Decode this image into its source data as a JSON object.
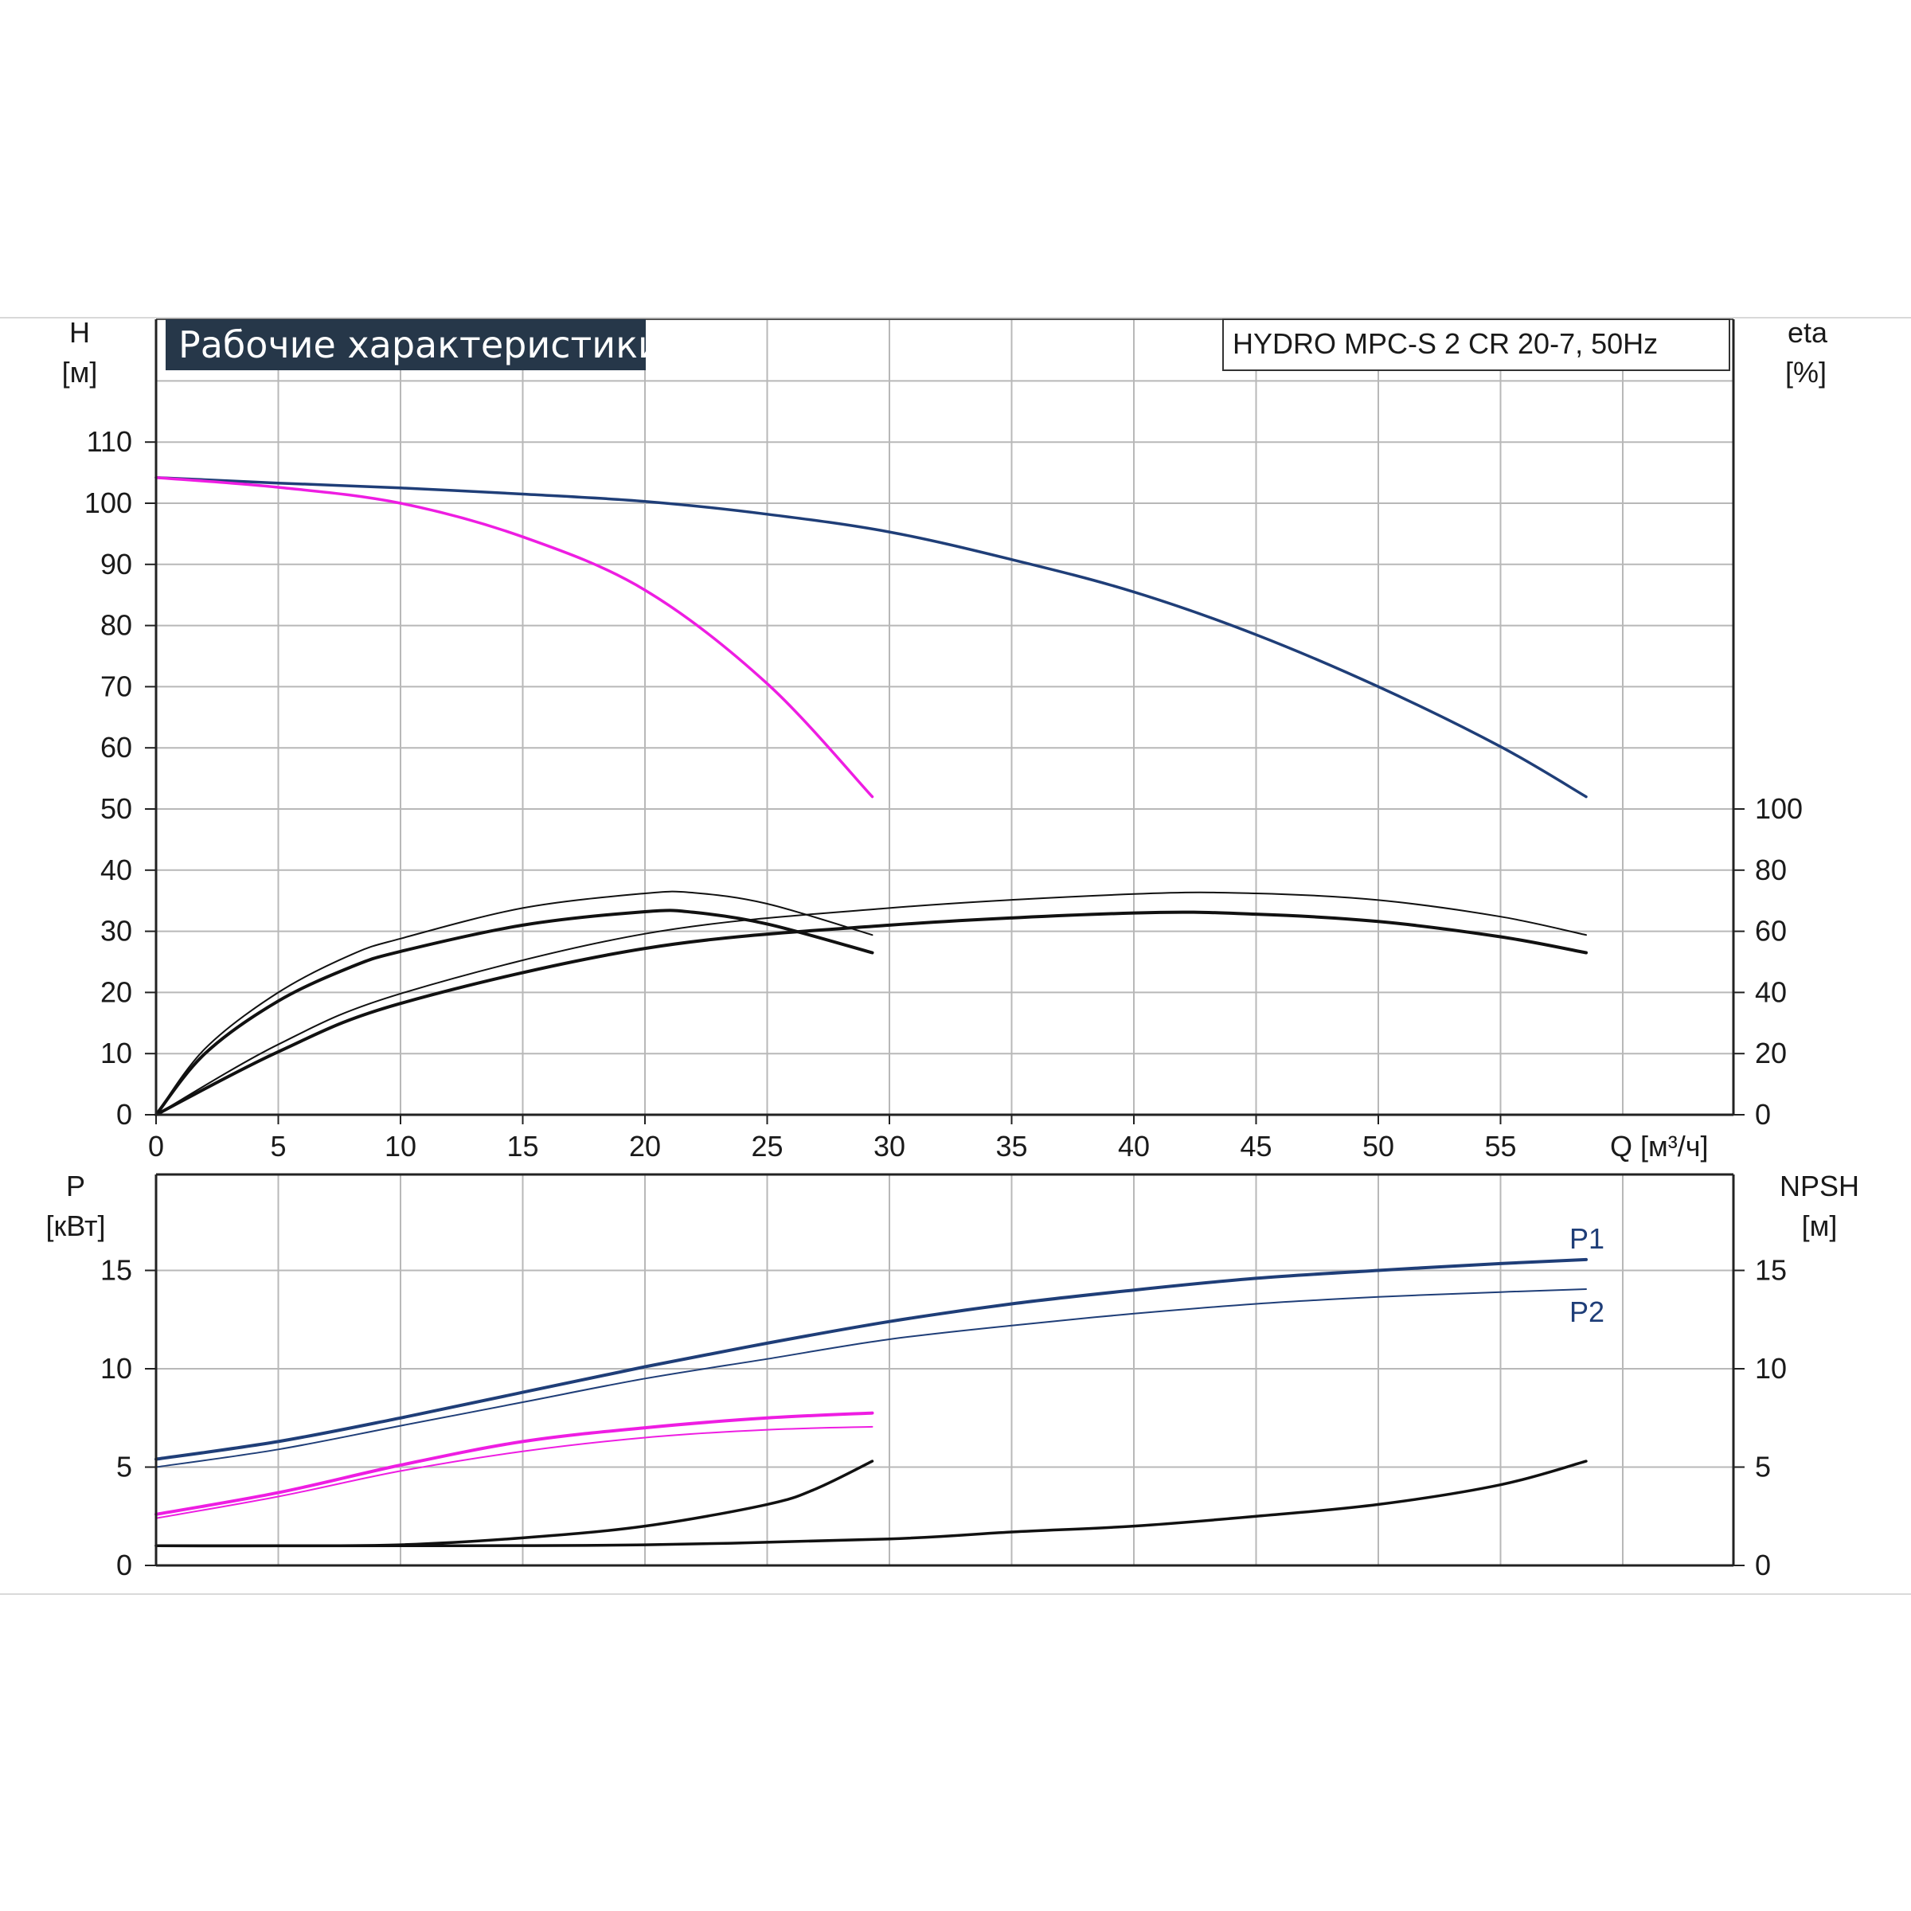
{
  "banner": "Рабочие характеристики",
  "model": "HYDRO MPC-S 2 CR 20-7, 50Hz",
  "colors": {
    "dark_blue": "#1f3e78",
    "magenta": "#ee1de2",
    "black": "#111111",
    "grid": "#b8b8b8",
    "banner_bg": "#263749"
  },
  "chart_data": [
    {
      "type": "line",
      "name": "top-panel",
      "xlabel": "Q [м³/ч]",
      "ylabel": "H",
      "ylabel_unit": "[м]",
      "y2label": "eta",
      "y2label_unit": "[%]",
      "xlim": [
        0,
        64.4
      ],
      "ylim": [
        0,
        120
      ],
      "x_ticks": [
        0,
        5,
        10,
        15,
        20,
        25,
        30,
        35,
        40,
        45,
        50,
        55
      ],
      "y_ticks": [
        0,
        10,
        20,
        30,
        40,
        50,
        60,
        70,
        80,
        90,
        100,
        110
      ],
      "y2_ticks": [
        0,
        20,
        40,
        60,
        80,
        100
      ],
      "y2_scale": "eta value = 2 × H-axis units (0 at 0, 100 at H=50)",
      "grid": true,
      "series": [
        {
          "color": "dark_blue",
          "width": 3.5,
          "x": [
            0,
            5,
            10,
            15,
            20,
            25,
            30,
            35,
            40,
            45,
            50,
            55,
            58.5
          ],
          "y": [
            104.2,
            103.3,
            102.5,
            101.5,
            100.3,
            98.2,
            95.3,
            90.8,
            85.5,
            78.5,
            70.0,
            60.2,
            52.0
          ]
        },
        {
          "color": "magenta",
          "width": 3.5,
          "x": [
            0,
            5,
            10,
            15,
            20,
            25,
            29.3
          ],
          "y": [
            104.2,
            102.6,
            100.0,
            94.5,
            85.8,
            70.5,
            52.0
          ]
        },
        {
          "color": "black",
          "width": 2,
          "x": [
            0,
            2,
            5,
            8,
            10,
            15,
            20,
            22,
            25,
            29.3
          ],
          "y": [
            0,
            10.8,
            20.0,
            26.2,
            28.8,
            33.8,
            36.2,
            36.3,
            34.5,
            29.4
          ]
        },
        {
          "color": "black",
          "width": 4,
          "x": [
            0,
            2,
            5,
            8,
            10,
            15,
            20,
            22,
            25,
            29.3
          ],
          "y": [
            0,
            10.0,
            18.6,
            24.2,
            26.7,
            31.0,
            33.2,
            33.1,
            31.2,
            26.5
          ]
        },
        {
          "color": "black",
          "width": 2,
          "x": [
            0,
            5,
            10,
            20,
            30,
            40,
            45,
            50,
            55,
            58.5
          ],
          "y": [
            0,
            11.5,
            19.8,
            29.6,
            33.8,
            36.1,
            36.2,
            35.1,
            32.4,
            29.4
          ]
        },
        {
          "color": "black",
          "width": 4,
          "x": [
            0,
            5,
            10,
            20,
            30,
            40,
            45,
            50,
            55,
            58.5
          ],
          "y": [
            0,
            10.3,
            18.2,
            27.2,
            31.0,
            33.0,
            32.8,
            31.6,
            29.1,
            26.5
          ]
        }
      ]
    },
    {
      "type": "line",
      "name": "bottom-panel",
      "ylabel": "P",
      "ylabel_unit": "[кВт]",
      "y2label": "NPSH",
      "y2label_unit": "[м]",
      "xlim": [
        0,
        64.4
      ],
      "ylim": [
        0,
        20
      ],
      "y_ticks": [
        0,
        5,
        10,
        15
      ],
      "y2_ticks": [
        0,
        5,
        10,
        15
      ],
      "grid": true,
      "series": [
        {
          "name": "P1",
          "color": "dark_blue",
          "width": 4,
          "x": [
            0,
            5,
            10,
            15,
            20,
            25,
            30,
            35,
            40,
            45,
            50,
            55,
            58.5
          ],
          "y": [
            5.4,
            6.3,
            7.5,
            8.8,
            10.1,
            11.3,
            12.4,
            13.3,
            14.0,
            14.6,
            15.0,
            15.35,
            15.55
          ]
        },
        {
          "name": "P2",
          "color": "dark_blue",
          "width": 2,
          "x": [
            0,
            5,
            10,
            15,
            20,
            25,
            30,
            35,
            40,
            45,
            50,
            55,
            58.5
          ],
          "y": [
            5.0,
            5.9,
            7.1,
            8.3,
            9.5,
            10.5,
            11.5,
            12.2,
            12.8,
            13.3,
            13.65,
            13.9,
            14.05
          ]
        },
        {
          "color": "magenta",
          "width": 4,
          "x": [
            0,
            5,
            10,
            15,
            20,
            25,
            29.3
          ],
          "y": [
            2.6,
            3.7,
            5.1,
            6.3,
            7.0,
            7.5,
            7.75
          ]
        },
        {
          "color": "magenta",
          "width": 2,
          "x": [
            0,
            5,
            10,
            15,
            20,
            25,
            29.3
          ],
          "y": [
            2.4,
            3.5,
            4.8,
            5.8,
            6.5,
            6.9,
            7.05
          ]
        },
        {
          "color": "black",
          "width": 3.5,
          "x": [
            0,
            5,
            10,
            15,
            20,
            25,
            27,
            29.3
          ],
          "y": [
            1.0,
            1.0,
            1.05,
            1.4,
            2.0,
            3.1,
            3.9,
            5.3
          ]
        },
        {
          "color": "black",
          "width": 3.5,
          "x": [
            0,
            10,
            20,
            30,
            35,
            40,
            45,
            50,
            55,
            58.5
          ],
          "y": [
            1.0,
            1.0,
            1.05,
            1.35,
            1.7,
            2.0,
            2.5,
            3.1,
            4.1,
            5.3
          ]
        }
      ],
      "series_labels": [
        "P1",
        "P2"
      ]
    }
  ]
}
